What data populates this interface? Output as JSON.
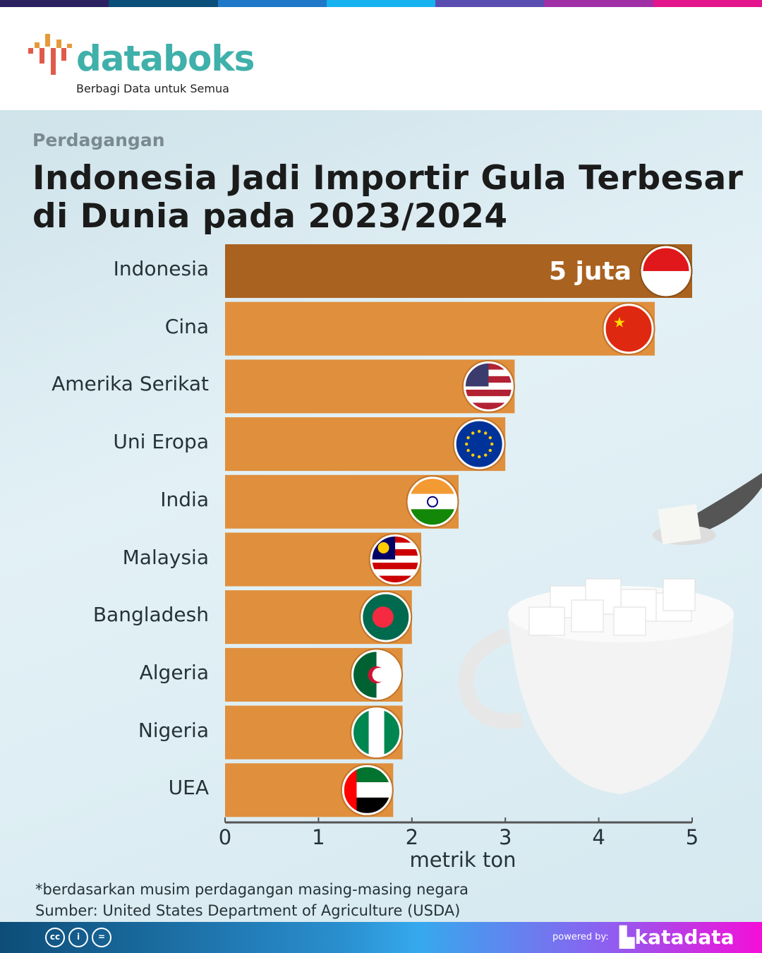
{
  "header": {
    "logo": "databoks",
    "tagline": "Berbagi Data untuk Semua"
  },
  "category": "Perdagangan",
  "title_line1": "Indonesia Jadi Importir Gula Terbesar",
  "title_line2": "di Dunia pada 2023/2024",
  "chart_data": {
    "type": "bar",
    "orientation": "horizontal",
    "title": "Indonesia Jadi Importir Gula Terbesar di Dunia pada 2023/2024",
    "categories": [
      "Indonesia",
      "Cina",
      "Amerika Serikat",
      "Uni Eropa",
      "India",
      "Malaysia",
      "Bangladesh",
      "Algeria",
      "Nigeria",
      "UEA"
    ],
    "values": [
      5.0,
      4.6,
      3.1,
      3.0,
      2.5,
      2.1,
      2.0,
      1.9,
      1.9,
      1.8
    ],
    "flags": [
      "flag-indonesia-icon",
      "flag-china-icon",
      "flag-usa-icon",
      "flag-eu-icon",
      "flag-india-icon",
      "flag-malaysia-icon",
      "flag-bangladesh-icon",
      "flag-algeria-icon",
      "flag-nigeria-icon",
      "flag-uae-icon"
    ],
    "data_label": "5 juta",
    "xlabel": "metrik ton",
    "xlim": [
      0,
      5
    ],
    "xticks": [
      "0",
      "1",
      "2",
      "3",
      "4",
      "5"
    ],
    "highlight_color": "#a9621f",
    "bar_color": "#e08f3d",
    "grid": false
  },
  "notes": {
    "footnote": "*berdasarkan musim perdagangan masing-masing negara",
    "source": "Sumber: United States Department of Agriculture (USDA)"
  },
  "footer": {
    "powered": "powered by:",
    "brand": "katadata",
    "license": [
      "cc",
      "i",
      "="
    ]
  }
}
